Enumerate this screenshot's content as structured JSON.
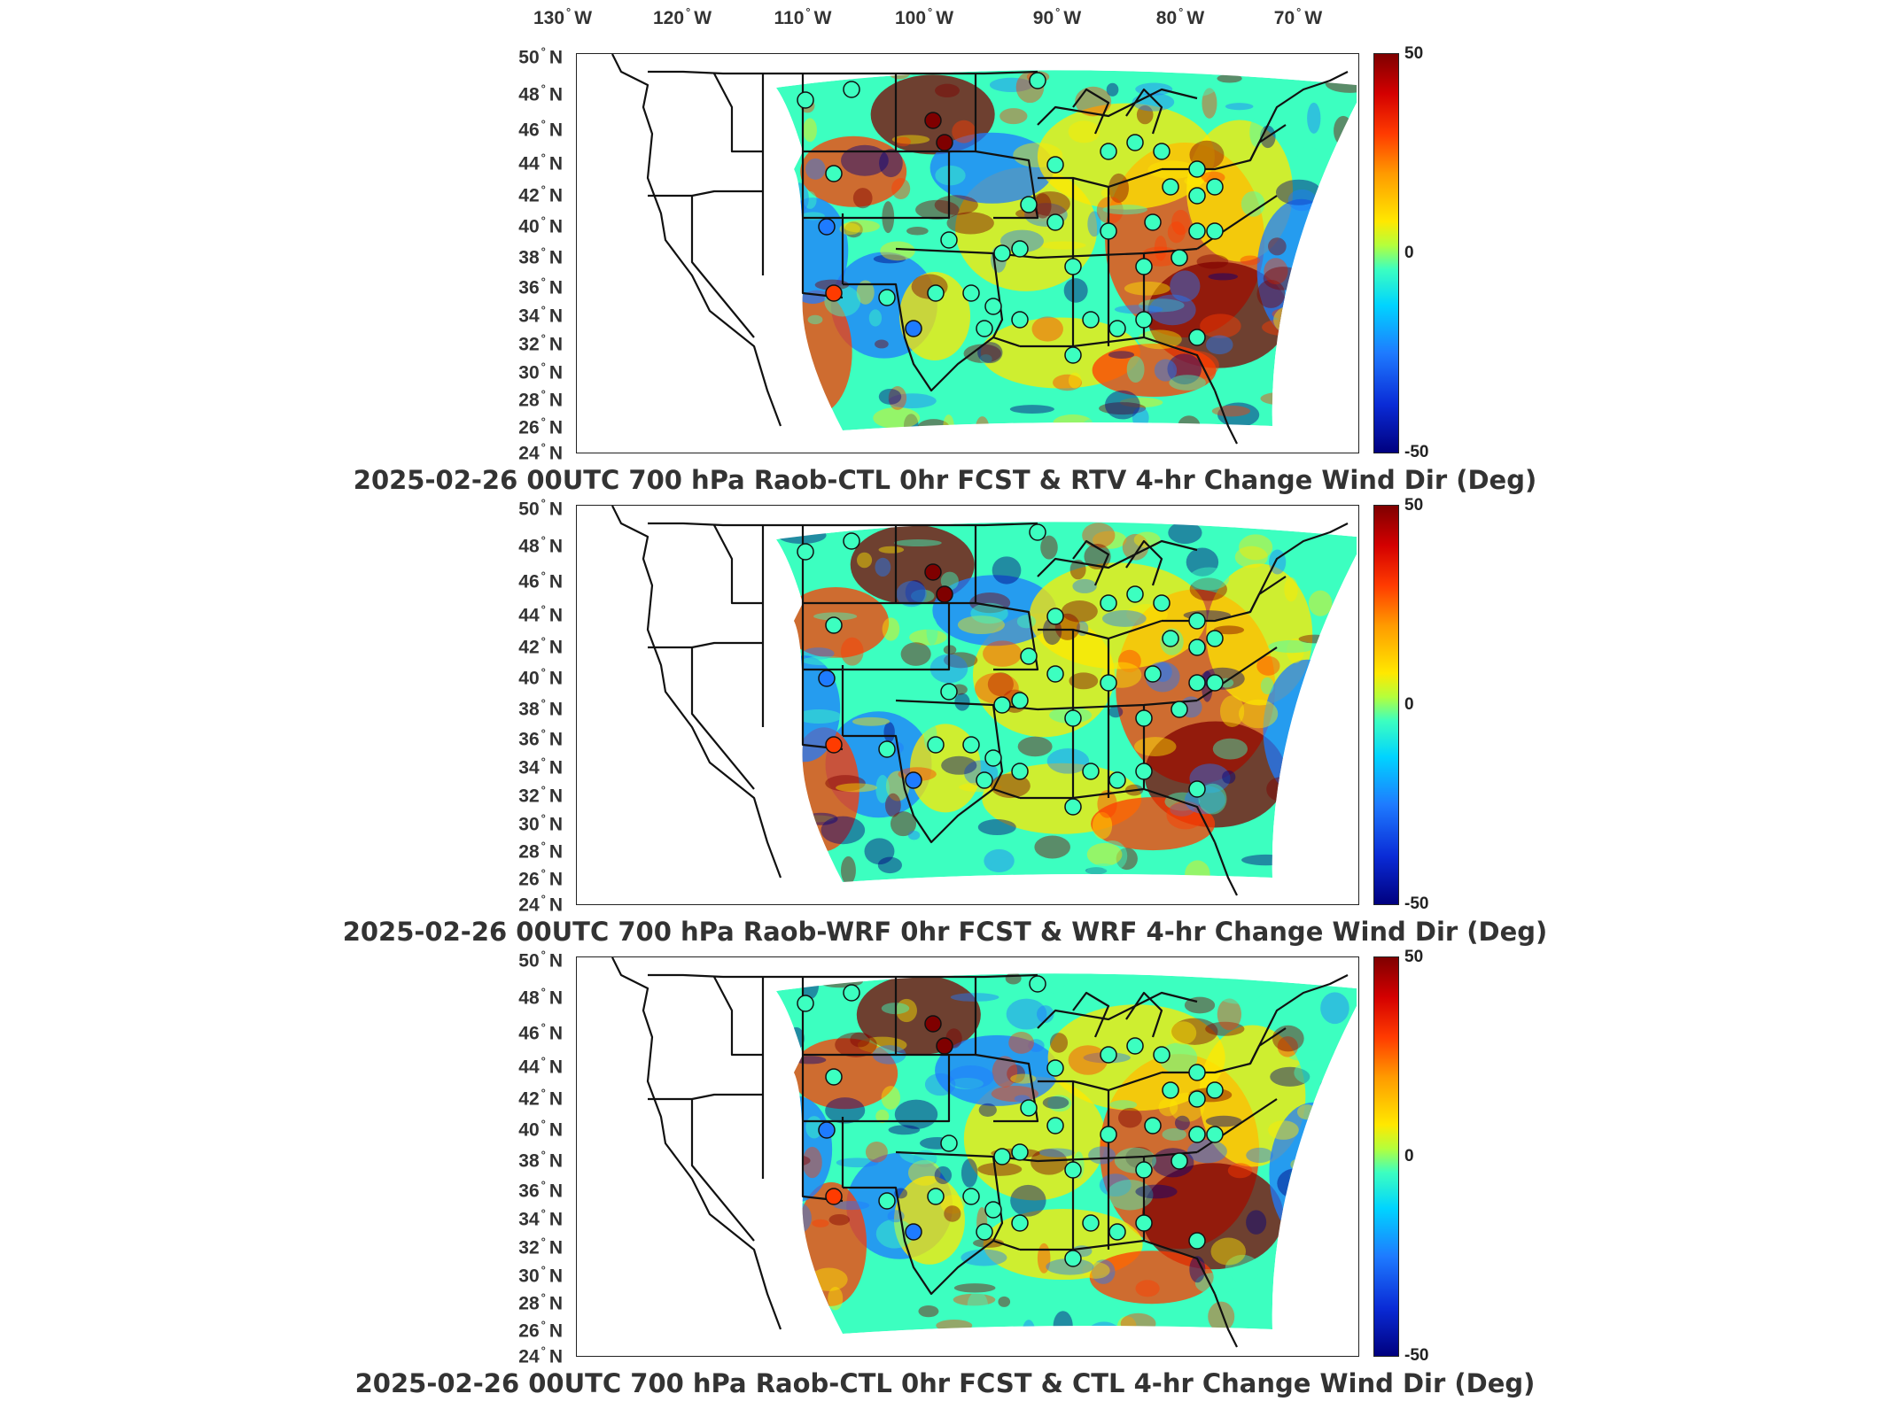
{
  "longitude_labels": [
    {
      "deg": "130",
      "hemi": "W"
    },
    {
      "deg": "120",
      "hemi": "W"
    },
    {
      "deg": "110",
      "hemi": "W"
    },
    {
      "deg": "100",
      "hemi": "W"
    },
    {
      "deg": "90",
      "hemi": "W"
    },
    {
      "deg": "80",
      "hemi": "W"
    },
    {
      "deg": "70",
      "hemi": "W"
    }
  ],
  "latitude_labels": [
    {
      "deg": "50",
      "hemi": "N"
    },
    {
      "deg": "48",
      "hemi": "N"
    },
    {
      "deg": "46",
      "hemi": "N"
    },
    {
      "deg": "44",
      "hemi": "N"
    },
    {
      "deg": "42",
      "hemi": "N"
    },
    {
      "deg": "40",
      "hemi": "N"
    },
    {
      "deg": "38",
      "hemi": "N"
    },
    {
      "deg": "36",
      "hemi": "N"
    },
    {
      "deg": "34",
      "hemi": "N"
    },
    {
      "deg": "32",
      "hemi": "N"
    },
    {
      "deg": "30",
      "hemi": "N"
    },
    {
      "deg": "28",
      "hemi": "N"
    },
    {
      "deg": "26",
      "hemi": "N"
    },
    {
      "deg": "24",
      "hemi": "N"
    }
  ],
  "colorbar": {
    "ticks": [
      "50",
      "0",
      "-50"
    ],
    "colors": [
      "#7f0000",
      "#ff3b00",
      "#ffe800",
      "#3cffc0",
      "#1e7bff",
      "#00007f"
    ]
  },
  "panels": [
    {
      "title": "2025-02-26 00UTC 700 hPa Raob-CTL 0hr FCST & RTV 4-hr Change Wind Dir (Deg)"
    },
    {
      "title": "2025-02-26 00UTC 700 hPa Raob-WRF 0hr FCST & WRF 4-hr Change Wind Dir (Deg)"
    },
    {
      "title": "2025-02-26 00UTC 700 hPa Raob-CTL 0hr FCST & CTL 4-hr Change Wind Dir (Deg)"
    }
  ]
}
